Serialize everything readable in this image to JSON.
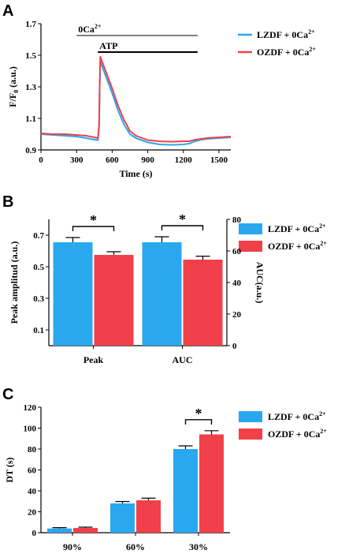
{
  "colors": {
    "lzdf": "#29a8f0",
    "ozdf": "#f2404a",
    "axis": "#000000",
    "bar_grey": "#7f7f7f"
  },
  "panels": {
    "A": {
      "letter": "A"
    },
    "B": {
      "letter": "B"
    },
    "C": {
      "letter": "C"
    }
  },
  "chart_data": [
    {
      "panel": "A",
      "type": "line",
      "xlabel": "Time (s)",
      "ylabel_main": "F/F",
      "ylabel_sub": "0",
      "ylabel_unit": " (a.u.)",
      "xlim": [
        0,
        1600
      ],
      "ylim": [
        0.9,
        1.7
      ],
      "xticks": [
        0,
        300,
        600,
        900,
        1200,
        1500
      ],
      "yticks": [
        0.9,
        1.1,
        1.3,
        1.5,
        1.7
      ],
      "annotations": [
        {
          "label_main": "0Ca",
          "label_sup": "2+",
          "x_start": 300,
          "x_end": 1320,
          "color": "#7f7f7f"
        },
        {
          "label_main": "ATP",
          "label_sup": "",
          "x_start": 480,
          "x_end": 1320,
          "color": "#000000"
        }
      ],
      "legend_position": "top-right",
      "series": [
        {
          "name_main": "LZDF + 0Ca",
          "name_sup": "2+",
          "color": "#29a8f0",
          "x": [
            0,
            100,
            200,
            300,
            380,
            450,
            480,
            490,
            495,
            500,
            520,
            550,
            600,
            650,
            700,
            750,
            800,
            900,
            1000,
            1100,
            1200,
            1250,
            1300,
            1350,
            1400,
            1500,
            1600
          ],
          "y": [
            1.0,
            0.995,
            0.99,
            0.985,
            0.975,
            0.965,
            0.962,
            1.05,
            1.3,
            1.46,
            1.42,
            1.36,
            1.26,
            1.15,
            1.06,
            1.0,
            0.975,
            0.948,
            0.935,
            0.932,
            0.935,
            0.94,
            0.955,
            0.965,
            0.97,
            0.975,
            0.98
          ]
        },
        {
          "name_main": "OZDF + 0Ca",
          "name_sup": "2+",
          "color": "#f2404a",
          "x": [
            0,
            100,
            200,
            300,
            380,
            450,
            480,
            490,
            495,
            500,
            520,
            550,
            600,
            650,
            700,
            750,
            800,
            900,
            1000,
            1100,
            1200,
            1250,
            1300,
            1350,
            1400,
            1500,
            1600
          ],
          "y": [
            1.005,
            1.0,
            1.0,
            0.995,
            0.99,
            0.98,
            0.975,
            1.06,
            1.32,
            1.49,
            1.45,
            1.39,
            1.29,
            1.18,
            1.09,
            1.02,
            0.99,
            0.962,
            0.955,
            0.952,
            0.955,
            0.955,
            0.965,
            0.97,
            0.975,
            0.98,
            0.985
          ]
        }
      ]
    },
    {
      "panel": "B",
      "type": "bar",
      "categories": [
        "Peak",
        "AUC"
      ],
      "ylabel_left": "Peak amplitud (a.u.)",
      "ylabel_right": "AUC(a.u.)",
      "ylim_left": [
        0,
        0.8
      ],
      "ylim_right": [
        0,
        80
      ],
      "yticks_left": [
        0.1,
        0.3,
        0.5,
        0.7
      ],
      "yticks_right": [
        0,
        20,
        40,
        60,
        80
      ],
      "legend_position": "top-right",
      "series": [
        {
          "name_main": "LZDF + 0Ca",
          "name_sup": "2+",
          "color": "#29a8f0",
          "values": [
            0.655,
            0.655
          ],
          "errors": [
            0.03,
            0.035
          ]
        },
        {
          "name_main": "OZDF + 0Ca",
          "name_sup": "2+",
          "color": "#f2404a",
          "values": [
            0.575,
            0.545
          ],
          "errors": [
            0.02,
            0.022
          ]
        }
      ],
      "significance": [
        {
          "category_index": 0,
          "label": "*"
        },
        {
          "category_index": 1,
          "label": "*"
        }
      ]
    },
    {
      "panel": "C",
      "type": "bar",
      "categories": [
        "90%",
        "60%",
        "30%"
      ],
      "ylabel": "DT (s)",
      "ylim": [
        0,
        120
      ],
      "yticks": [
        0,
        20,
        40,
        60,
        80,
        100,
        120
      ],
      "legend_position": "top-right",
      "series": [
        {
          "name_main": "LZDF + 0Ca",
          "name_sup": "2+",
          "color": "#29a8f0",
          "values": [
            4,
            28,
            80
          ],
          "errors": [
            0.8,
            1.8,
            3
          ]
        },
        {
          "name_main": "OZDF + 0Ca",
          "name_sup": "2+",
          "color": "#f2404a",
          "values": [
            4.5,
            31,
            94
          ],
          "errors": [
            0.8,
            2,
            3.5
          ]
        }
      ],
      "significance": [
        {
          "category_index": 2,
          "label": "*"
        }
      ]
    }
  ]
}
